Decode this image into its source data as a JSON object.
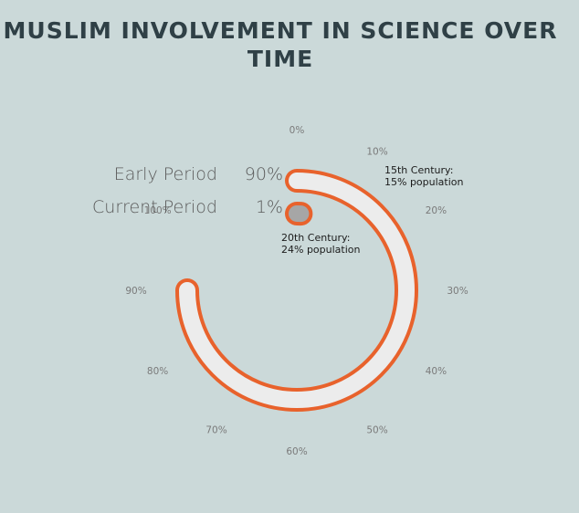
{
  "chart_data": {
    "type": "radial-bar",
    "title": "MUSLIM INVOLVEMENT IN SCIENCE OVER TIME",
    "axis_ticks": [
      "0%",
      "10%",
      "20%",
      "30%",
      "40%",
      "50%",
      "60%",
      "70%",
      "80%",
      "90%",
      "100%"
    ],
    "series": [
      {
        "name": "Early Period",
        "value": 90,
        "value_label": "90%",
        "fill": "#ececec",
        "stroke": "#e8622c"
      },
      {
        "name": "Current Period",
        "value": 1,
        "value_label": "1%",
        "fill": "#a6a6a6",
        "stroke": "#e8622c"
      }
    ],
    "annotations": [
      {
        "lines": [
          "15th Century:",
          "15% population"
        ],
        "series": "Early Period"
      },
      {
        "lines": [
          "20th Century:",
          "24% population"
        ],
        "series": "Current Period"
      }
    ]
  }
}
